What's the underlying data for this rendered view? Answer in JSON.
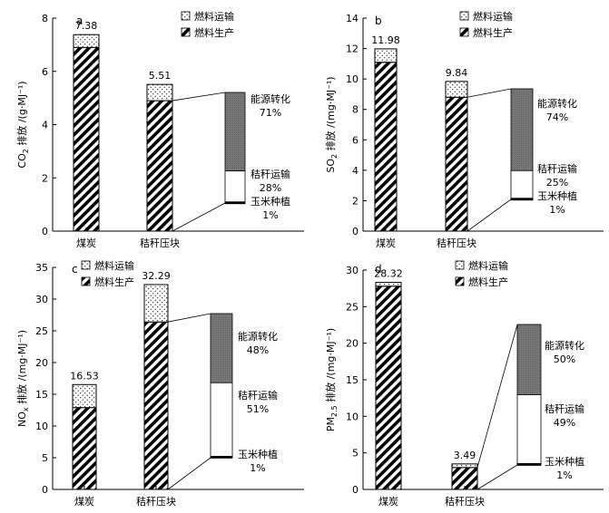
{
  "chart_data": [
    {
      "type": "bar",
      "panel": "a",
      "ylabel_main": "CO",
      "ylabel_sub": "2",
      "ylabel_rest": " 排放 /(g·MJ⁻¹)",
      "ylim": [
        0,
        8
      ],
      "yticks": [
        0,
        2,
        4,
        6,
        8
      ],
      "categories": [
        "煤炭",
        "秸秆压块"
      ],
      "series": [
        {
          "name": "燃料生产",
          "values": [
            6.9,
            4.9
          ]
        },
        {
          "name": "燃料运输",
          "values": [
            0.48,
            0.61
          ]
        }
      ],
      "totals": [
        "7.38",
        "5.51"
      ],
      "legend": [
        "燃料运输",
        "燃料生产"
      ],
      "breakdown": [
        {
          "name": "能源转化",
          "pct": "71%",
          "share": 0.71
        },
        {
          "name": "秸秆运输",
          "pct": "28%",
          "share": 0.28
        },
        {
          "name": "玉米种植",
          "pct": "1%",
          "share": 0.01
        }
      ]
    },
    {
      "type": "bar",
      "panel": "b",
      "ylabel_main": "SO",
      "ylabel_sub": "2",
      "ylabel_rest": " 排放 /(mg·MJ⁻¹)",
      "ylim": [
        0,
        14
      ],
      "yticks": [
        0,
        2,
        4,
        6,
        8,
        10,
        12,
        14
      ],
      "categories": [
        "煤炭",
        "秸秆压块"
      ],
      "series": [
        {
          "name": "燃料生产",
          "values": [
            11.1,
            8.8
          ]
        },
        {
          "name": "燃料运输",
          "values": [
            0.88,
            1.04
          ]
        }
      ],
      "totals": [
        "11.98",
        "9.84"
      ],
      "legend": [
        "燃料运输",
        "燃料生产"
      ],
      "breakdown": [
        {
          "name": "能源转化",
          "pct": "74%",
          "share": 0.74
        },
        {
          "name": "秸秆运输",
          "pct": "25%",
          "share": 0.25
        },
        {
          "name": "玉米种植",
          "pct": "1%",
          "share": 0.01
        }
      ]
    },
    {
      "type": "bar",
      "panel": "c",
      "ylabel_main": "NO",
      "ylabel_sub": "x",
      "ylabel_rest": " 排放 /(mg·MJ⁻¹)",
      "ylim": [
        0,
        35
      ],
      "yticks": [
        0,
        5,
        10,
        15,
        20,
        25,
        30,
        35
      ],
      "categories": [
        "煤炭",
        "秸秆压块"
      ],
      "series": [
        {
          "name": "燃料生产",
          "values": [
            12.9,
            26.4
          ]
        },
        {
          "name": "燃料运输",
          "values": [
            3.63,
            5.89
          ]
        }
      ],
      "totals": [
        "16.53",
        "32.29"
      ],
      "legend": [
        "燃料运输",
        "燃料生产"
      ],
      "breakdown": [
        {
          "name": "能源转化",
          "pct": "48%",
          "share": 0.48
        },
        {
          "name": "秸秆运输",
          "pct": "51%",
          "share": 0.51
        },
        {
          "name": "玉米种植",
          "pct": "1%",
          "share": 0.01
        }
      ]
    },
    {
      "type": "bar",
      "panel": "d",
      "ylabel_main": "PM",
      "ylabel_sub": "2.5",
      "ylabel_rest": " 排放 /(mg·MJ⁻¹)",
      "ylim": [
        0,
        30
      ],
      "yticks": [
        0,
        5,
        10,
        15,
        20,
        25,
        30
      ],
      "categories": [
        "煤炭",
        "秸秆压块"
      ],
      "series": [
        {
          "name": "燃料生产",
          "values": [
            27.8,
            3.0
          ]
        },
        {
          "name": "燃料运输",
          "values": [
            0.52,
            0.49
          ]
        }
      ],
      "totals": [
        "28.32",
        "3.49"
      ],
      "legend": [
        "燃料运输",
        "燃料生产"
      ],
      "breakdown": [
        {
          "name": "能源转化",
          "pct": "50%",
          "share": 0.5
        },
        {
          "name": "秸秆运输",
          "pct": "49%",
          "share": 0.49
        },
        {
          "name": "玉米种植",
          "pct": "1%",
          "share": 0.01
        }
      ]
    }
  ]
}
